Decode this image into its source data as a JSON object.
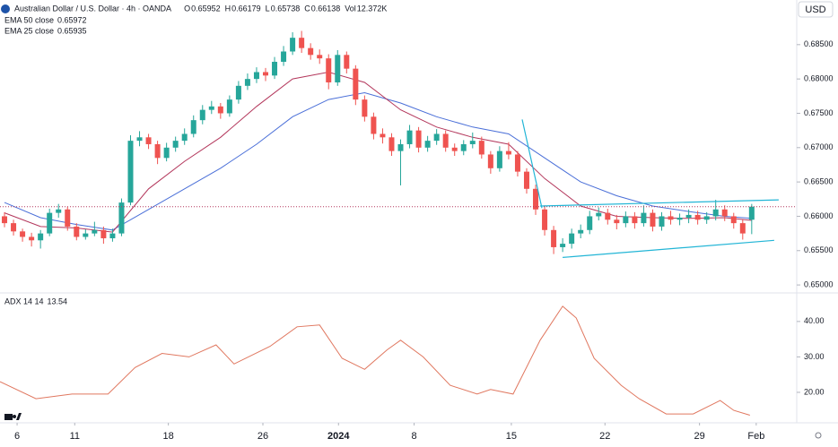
{
  "chart_data": [
    {
      "type": "candlestick",
      "title": "Australian Dollar / U.S. Dollar · 4h · OANDA",
      "ohlc": [
        {
          "label": "O",
          "value": "0.65952"
        },
        {
          "label": "H",
          "value": "0.66179"
        },
        {
          "label": "L",
          "value": "0.65738"
        },
        {
          "label": "C",
          "value": "0.66138"
        },
        {
          "label": "Vol",
          "value": "12.372K"
        }
      ],
      "currency": "USD",
      "up_color": "#26a69a",
      "down_color": "#ef5350",
      "xlim": [
        -0.5,
        88
      ],
      "xticks": [
        {
          "value": 1.4,
          "label": "6"
        },
        {
          "value": 7.8,
          "label": "11"
        },
        {
          "value": 18.2,
          "label": "18"
        },
        {
          "value": 28.7,
          "label": "26"
        },
        {
          "value": 37.1,
          "label": "2024"
        },
        {
          "value": 45.5,
          "label": "8"
        },
        {
          "value": 56.3,
          "label": "15"
        },
        {
          "value": 66.7,
          "label": "22"
        },
        {
          "value": 77.2,
          "label": "29"
        },
        {
          "value": 83.5,
          "label": "Feb"
        }
      ],
      "ylim": [
        0.6491,
        0.6915
      ],
      "yticks": [
        {
          "value": 0.685,
          "label": "0.68500"
        },
        {
          "value": 0.68,
          "label": "0.68000"
        },
        {
          "value": 0.675,
          "label": "0.67500"
        },
        {
          "value": 0.67,
          "label": "0.67000"
        },
        {
          "value": 0.665,
          "label": "0.66500"
        },
        {
          "value": 0.66,
          "label": "0.66000"
        },
        {
          "value": 0.655,
          "label": "0.65500"
        },
        {
          "value": 0.65,
          "label": "0.65000"
        }
      ],
      "open": [
        0.66,
        0.659,
        0.6578,
        0.657,
        0.6565,
        0.6575,
        0.6605,
        0.661,
        0.6585,
        0.657,
        0.6575,
        0.658,
        0.6568,
        0.6575,
        0.662,
        0.671,
        0.6715,
        0.6705,
        0.6685,
        0.67,
        0.671,
        0.672,
        0.674,
        0.6755,
        0.676,
        0.675,
        0.677,
        0.679,
        0.68,
        0.681,
        0.6805,
        0.6825,
        0.684,
        0.686,
        0.6845,
        0.6835,
        0.683,
        0.6795,
        0.6835,
        0.6815,
        0.677,
        0.6745,
        0.672,
        0.6715,
        0.6695,
        0.6705,
        0.6725,
        0.67,
        0.671,
        0.672,
        0.67,
        0.6695,
        0.6705,
        0.671,
        0.669,
        0.667,
        0.6695,
        0.669,
        0.6665,
        0.664,
        0.661,
        0.658,
        0.6555,
        0.656,
        0.6575,
        0.658,
        0.66,
        0.6605,
        0.6595,
        0.659,
        0.66,
        0.659,
        0.6605,
        0.6585,
        0.66,
        0.6595,
        0.6598,
        0.6602,
        0.6595,
        0.66,
        0.661,
        0.66,
        0.659,
        0.6595
      ],
      "high": [
        0.6606,
        0.6595,
        0.6582,
        0.6576,
        0.658,
        0.6611,
        0.6618,
        0.6614,
        0.659,
        0.6581,
        0.6592,
        0.6585,
        0.6582,
        0.6626,
        0.6718,
        0.6724,
        0.672,
        0.671,
        0.6707,
        0.6716,
        0.6728,
        0.6747,
        0.6762,
        0.6768,
        0.6765,
        0.6776,
        0.6797,
        0.6808,
        0.6817,
        0.6816,
        0.6832,
        0.6848,
        0.6868,
        0.687,
        0.6852,
        0.6843,
        0.6836,
        0.6842,
        0.684,
        0.682,
        0.6776,
        0.6751,
        0.6728,
        0.6721,
        0.6712,
        0.6733,
        0.673,
        0.6717,
        0.6727,
        0.6725,
        0.6706,
        0.6711,
        0.6722,
        0.6716,
        0.6695,
        0.6702,
        0.6708,
        0.6695,
        0.667,
        0.6646,
        0.6616,
        0.6586,
        0.6568,
        0.6582,
        0.6588,
        0.6608,
        0.6613,
        0.6611,
        0.6602,
        0.6607,
        0.6606,
        0.6616,
        0.661,
        0.6606,
        0.6608,
        0.6604,
        0.661,
        0.6608,
        0.6606,
        0.6624,
        0.6616,
        0.6605,
        0.6595,
        0.6618
      ],
      "low": [
        0.6584,
        0.6572,
        0.6563,
        0.6556,
        0.6553,
        0.6571,
        0.6598,
        0.6579,
        0.6565,
        0.6566,
        0.6571,
        0.656,
        0.6563,
        0.6571,
        0.6616,
        0.6702,
        0.6698,
        0.6676,
        0.668,
        0.6694,
        0.6704,
        0.6715,
        0.6734,
        0.6749,
        0.6742,
        0.6745,
        0.6764,
        0.6784,
        0.6794,
        0.6797,
        0.68,
        0.6819,
        0.6835,
        0.6838,
        0.6828,
        0.6822,
        0.6785,
        0.679,
        0.6808,
        0.6762,
        0.6738,
        0.6712,
        0.6706,
        0.6688,
        0.6645,
        0.6699,
        0.6693,
        0.6694,
        0.6704,
        0.6694,
        0.6688,
        0.6689,
        0.6699,
        0.6684,
        0.6662,
        0.6665,
        0.6683,
        0.6658,
        0.6633,
        0.6602,
        0.6572,
        0.6545,
        0.6548,
        0.6553,
        0.6568,
        0.6574,
        0.6594,
        0.6588,
        0.6581,
        0.6584,
        0.6582,
        0.6585,
        0.6578,
        0.6579,
        0.6588,
        0.6587,
        0.659,
        0.6588,
        0.6589,
        0.6594,
        0.6593,
        0.6582,
        0.6566,
        0.6574
      ],
      "close": [
        0.659,
        0.6578,
        0.657,
        0.6565,
        0.6575,
        0.6605,
        0.661,
        0.6585,
        0.657,
        0.6575,
        0.658,
        0.6568,
        0.6575,
        0.662,
        0.671,
        0.6715,
        0.6705,
        0.6685,
        0.67,
        0.671,
        0.672,
        0.674,
        0.6755,
        0.676,
        0.675,
        0.677,
        0.679,
        0.68,
        0.681,
        0.6805,
        0.6825,
        0.684,
        0.686,
        0.6845,
        0.6835,
        0.683,
        0.6795,
        0.6835,
        0.6815,
        0.677,
        0.6745,
        0.672,
        0.6715,
        0.6695,
        0.6705,
        0.6725,
        0.67,
        0.671,
        0.672,
        0.67,
        0.6695,
        0.6705,
        0.671,
        0.669,
        0.667,
        0.6695,
        0.669,
        0.6665,
        0.664,
        0.661,
        0.658,
        0.6555,
        0.656,
        0.6575,
        0.658,
        0.66,
        0.6605,
        0.6595,
        0.659,
        0.66,
        0.659,
        0.6605,
        0.6585,
        0.66,
        0.6595,
        0.6598,
        0.6602,
        0.6595,
        0.66,
        0.661,
        0.66,
        0.659,
        0.6575,
        0.6614
      ],
      "series": [
        {
          "name": "EMA 50 close",
          "last": "0.65972",
          "color": "#4a6fd8",
          "x": [
            0,
            4,
            8,
            12,
            16,
            20,
            24,
            28,
            32,
            36,
            40,
            44,
            48,
            52,
            56,
            60,
            64,
            68,
            72,
            76,
            80,
            83
          ],
          "values": [
            0.662,
            0.6598,
            0.6588,
            0.658,
            0.661,
            0.664,
            0.667,
            0.6705,
            0.6745,
            0.677,
            0.678,
            0.6765,
            0.6745,
            0.673,
            0.672,
            0.6685,
            0.665,
            0.663,
            0.6615,
            0.6607,
            0.66,
            0.6597
          ]
        },
        {
          "name": "EMA 25 close",
          "last": "0.65935",
          "color": "#b3365b",
          "x": [
            0,
            4,
            8,
            12,
            16,
            20,
            24,
            28,
            32,
            36,
            40,
            44,
            48,
            52,
            56,
            60,
            64,
            68,
            72,
            76,
            80,
            83
          ],
          "values": [
            0.6605,
            0.6585,
            0.6583,
            0.6577,
            0.664,
            0.668,
            0.6715,
            0.676,
            0.68,
            0.681,
            0.6795,
            0.6755,
            0.673,
            0.6715,
            0.6705,
            0.6655,
            0.6615,
            0.66,
            0.6598,
            0.6597,
            0.6598,
            0.6594
          ]
        }
      ],
      "trendline_color": "#22b5d6",
      "trendlines": [
        {
          "x": [
            57.5,
            59.7
          ],
          "y": [
            0.6741,
            0.6612
          ]
        },
        {
          "x": [
            59.5,
            86
          ],
          "y": [
            0.6615,
            0.6624
          ]
        },
        {
          "x": [
            62,
            85.5
          ],
          "y": [
            0.654,
            0.6565
          ]
        }
      ]
    },
    {
      "type": "line",
      "title": "ADX 14 14",
      "last": "13.54",
      "color": "#e0775f",
      "xlim": [
        -0.5,
        88
      ],
      "ylim": [
        11.9,
        47.3
      ],
      "yticks": [
        {
          "value": 40,
          "label": "40.00"
        },
        {
          "value": 30,
          "label": "30.00"
        },
        {
          "value": 20,
          "label": "20.00"
        }
      ],
      "x": [
        -0.5,
        3.5,
        7.5,
        11.5,
        14.5,
        17.5,
        20.5,
        23.5,
        25.5,
        29.5,
        32.5,
        35,
        37.5,
        40,
        42.5,
        44,
        46.5,
        49.5,
        52.5,
        54,
        56.5,
        59.5,
        62,
        63.5,
        65.5,
        68.5,
        70.5,
        73.5,
        76.5,
        79.5,
        81,
        82.8
      ],
      "values": [
        23,
        18.2,
        19.5,
        19.5,
        27,
        31,
        30,
        33.4,
        28,
        33,
        38.5,
        39,
        29.6,
        26.5,
        32,
        34.7,
        30,
        22,
        19.5,
        20.8,
        19.5,
        34.7,
        44.3,
        41,
        29.6,
        22,
        18.2,
        13.9,
        13.9,
        17.7,
        14.9,
        13.54
      ]
    }
  ]
}
